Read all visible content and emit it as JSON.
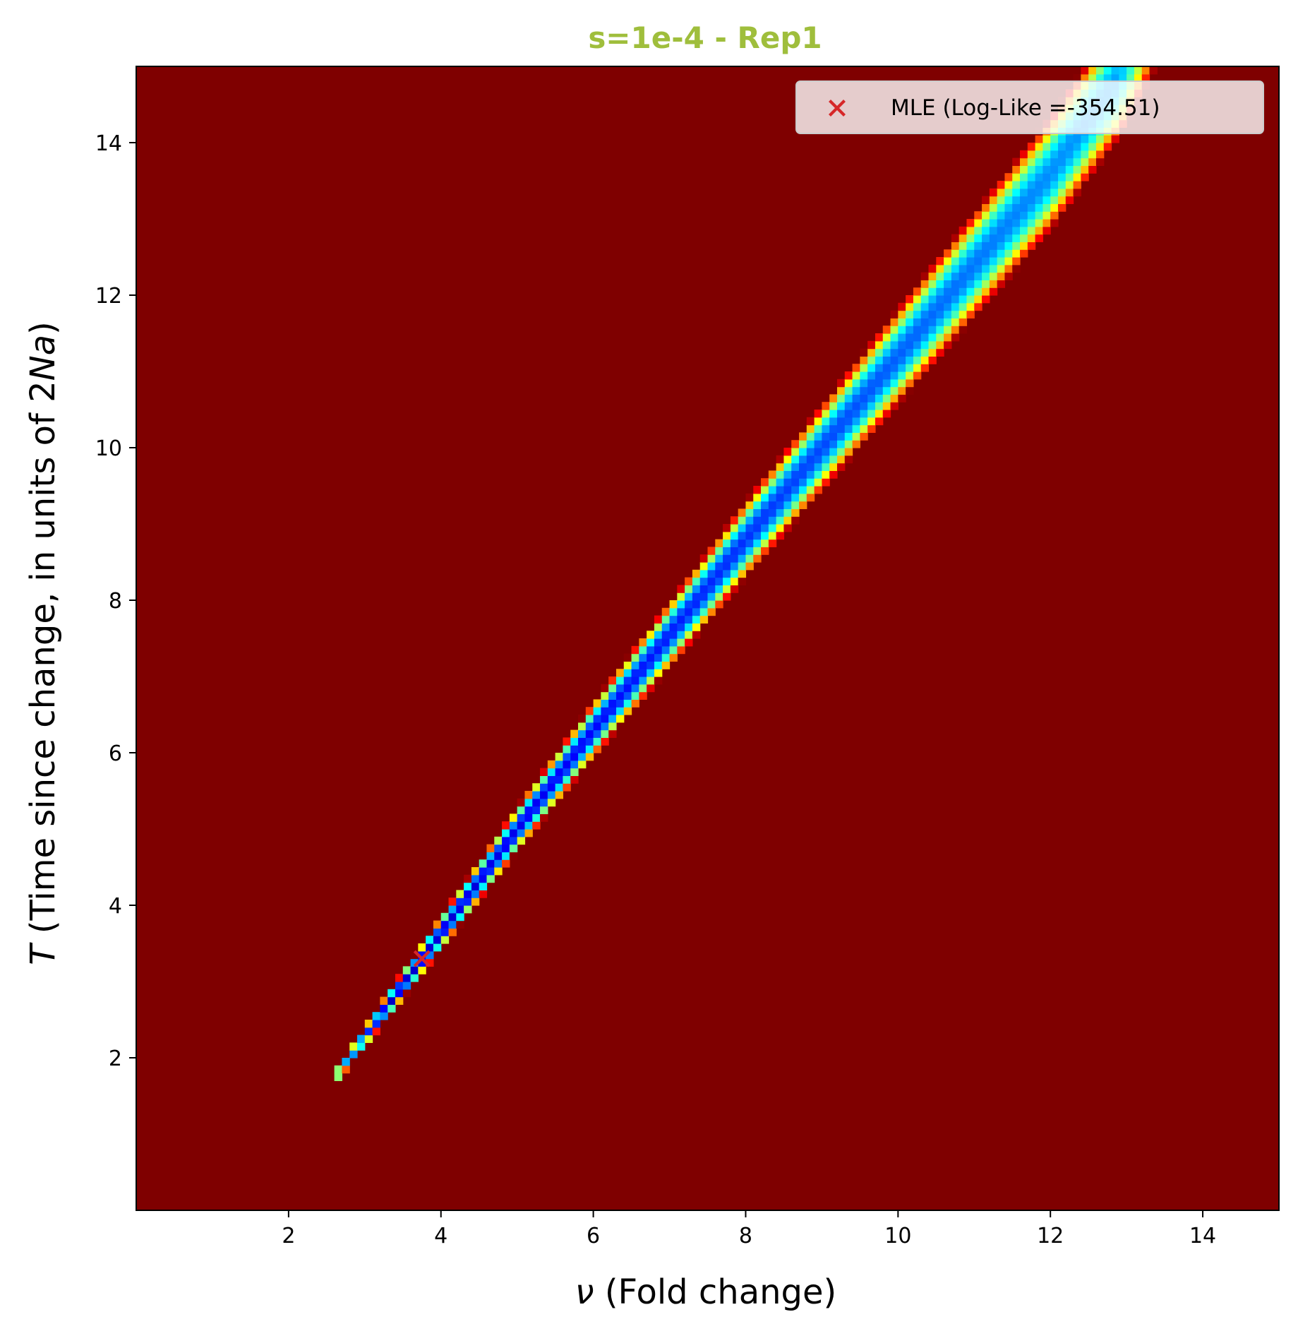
{
  "chart_data": {
    "type": "heatmap",
    "title": "s=1e-4 - Rep1",
    "title_color": "#9fbe3c",
    "xlabel_symbol": "ν",
    "xlabel_text": " (Fold change)",
    "ylabel_symbol": "T",
    "ylabel_text_1": " (Time since change, in units of 2",
    "ylabel_text_italic": "Na",
    "ylabel_text_2": ")",
    "xlim": [
      0.0,
      15.0
    ],
    "ylim": [
      0.0,
      15.0
    ],
    "xticks": [
      2,
      4,
      6,
      8,
      10,
      12,
      14
    ],
    "yticks": [
      2,
      4,
      6,
      8,
      10,
      12,
      14
    ],
    "colormap": "jet",
    "background_color": "#7f0000",
    "grid": false,
    "ridge": {
      "description": "band of high likelihood; centerline T as function of nu",
      "nu_start": 2.65,
      "nu_end": 13.6,
      "centerline": [
        [
          2.65,
          1.8
        ],
        [
          3.75,
          3.3
        ],
        [
          5.0,
          5.0
        ],
        [
          6.0,
          6.3
        ],
        [
          8.0,
          8.8
        ],
        [
          10.0,
          11.2
        ],
        [
          12.0,
          13.6
        ],
        [
          13.0,
          15.0
        ]
      ]
    },
    "mle_point": {
      "x": 3.75,
      "y": 3.3,
      "color": "#d62728",
      "marker": "X"
    },
    "legend": {
      "placement": "top-right",
      "entries": [
        {
          "label": "MLE (Log-Like =-354.51)",
          "color": "#d62728",
          "marker": "X"
        }
      ]
    }
  }
}
